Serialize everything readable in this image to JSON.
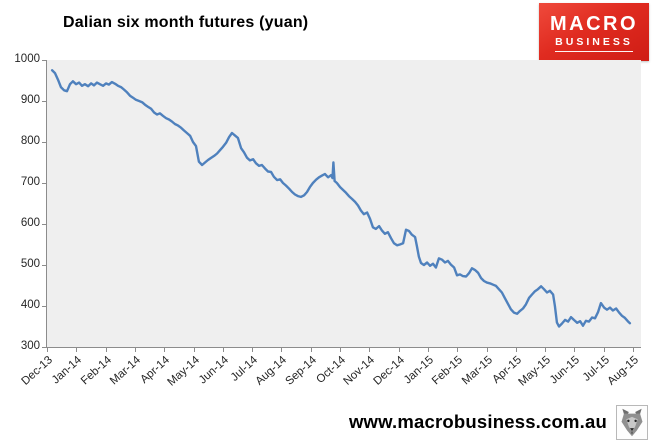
{
  "title": "Dalian six month futures (yuan)",
  "logo": {
    "line1": "MACRO",
    "line2": "BUSINESS",
    "bg_color": "#d92218",
    "text_color": "#ffffff"
  },
  "footer": {
    "url": "www.macrobusiness.com.au",
    "icon": "wolf-icon"
  },
  "chart_data": {
    "type": "line",
    "title": "Dalian six month futures (yuan)",
    "xlabel": "",
    "ylabel": "",
    "ylim": [
      300,
      1000
    ],
    "y_ticks": [
      1000,
      900,
      800,
      700,
      600,
      500,
      400,
      300
    ],
    "x_tick_labels": [
      "Dec-13",
      "Jan-14",
      "Feb-14",
      "Mar-14",
      "Apr-14",
      "May-14",
      "Jun-14",
      "Jul-14",
      "Aug-14",
      "Sep-14",
      "Oct-14",
      "Nov-14",
      "Dec-14",
      "Jan-15",
      "Feb-15",
      "Mar-15",
      "Apr-15",
      "May-15",
      "Jun-15",
      "Jul-15",
      "Aug-15"
    ],
    "grid": false,
    "legend": "none",
    "plot_bg": "#efefef",
    "line_color": "#4F81BD",
    "series": [
      {
        "name": "Dalian six month futures",
        "x_unit": "months since Dec-2013 (0 = Dec-13 tick, 20 = Aug-15 tick)",
        "points": [
          [
            0.14,
            975
          ],
          [
            0.24,
            968
          ],
          [
            0.34,
            952
          ],
          [
            0.44,
            934
          ],
          [
            0.55,
            926
          ],
          [
            0.65,
            924
          ],
          [
            0.75,
            941
          ],
          [
            0.85,
            948
          ],
          [
            0.96,
            941
          ],
          [
            1.06,
            945
          ],
          [
            1.16,
            937
          ],
          [
            1.26,
            941
          ],
          [
            1.37,
            936
          ],
          [
            1.47,
            943
          ],
          [
            1.57,
            938
          ],
          [
            1.67,
            945
          ],
          [
            1.77,
            941
          ],
          [
            1.88,
            937
          ],
          [
            1.98,
            943
          ],
          [
            2.08,
            940
          ],
          [
            2.18,
            946
          ],
          [
            2.29,
            942
          ],
          [
            2.39,
            937
          ],
          [
            2.49,
            934
          ],
          [
            2.59,
            928
          ],
          [
            2.7,
            921
          ],
          [
            2.8,
            913
          ],
          [
            2.9,
            908
          ],
          [
            3.0,
            903
          ],
          [
            3.11,
            900
          ],
          [
            3.21,
            897
          ],
          [
            3.31,
            891
          ],
          [
            3.41,
            886
          ],
          [
            3.52,
            881
          ],
          [
            3.62,
            872
          ],
          [
            3.72,
            867
          ],
          [
            3.82,
            870
          ],
          [
            3.92,
            864
          ],
          [
            4.03,
            858
          ],
          [
            4.13,
            855
          ],
          [
            4.23,
            850
          ],
          [
            4.33,
            844
          ],
          [
            4.44,
            840
          ],
          [
            4.54,
            835
          ],
          [
            4.64,
            828
          ],
          [
            4.74,
            822
          ],
          [
            4.85,
            815
          ],
          [
            4.95,
            800
          ],
          [
            5.05,
            790
          ],
          [
            5.15,
            752
          ],
          [
            5.26,
            744
          ],
          [
            5.36,
            750
          ],
          [
            5.46,
            756
          ],
          [
            5.56,
            761
          ],
          [
            5.67,
            766
          ],
          [
            5.77,
            772
          ],
          [
            5.87,
            780
          ],
          [
            5.97,
            788
          ],
          [
            6.08,
            798
          ],
          [
            6.18,
            812
          ],
          [
            6.28,
            822
          ],
          [
            6.38,
            816
          ],
          [
            6.48,
            810
          ],
          [
            6.59,
            785
          ],
          [
            6.69,
            775
          ],
          [
            6.79,
            762
          ],
          [
            6.89,
            755
          ],
          [
            7.0,
            758
          ],
          [
            7.1,
            748
          ],
          [
            7.2,
            742
          ],
          [
            7.3,
            744
          ],
          [
            7.41,
            735
          ],
          [
            7.51,
            728
          ],
          [
            7.61,
            727
          ],
          [
            7.71,
            715
          ],
          [
            7.82,
            707
          ],
          [
            7.92,
            709
          ],
          [
            8.02,
            700
          ],
          [
            8.12,
            694
          ],
          [
            8.23,
            686
          ],
          [
            8.33,
            678
          ],
          [
            8.43,
            672
          ],
          [
            8.53,
            668
          ],
          [
            8.63,
            666
          ],
          [
            8.74,
            670
          ],
          [
            8.84,
            678
          ],
          [
            8.94,
            690
          ],
          [
            9.04,
            700
          ],
          [
            9.15,
            708
          ],
          [
            9.25,
            714
          ],
          [
            9.35,
            718
          ],
          [
            9.45,
            722
          ],
          [
            9.56,
            714
          ],
          [
            9.66,
            719
          ],
          [
            9.71,
            712
          ],
          [
            9.74,
            750
          ],
          [
            9.78,
            705
          ],
          [
            9.86,
            700
          ],
          [
            9.97,
            690
          ],
          [
            10.07,
            683
          ],
          [
            10.17,
            676
          ],
          [
            10.27,
            668
          ],
          [
            10.38,
            661
          ],
          [
            10.48,
            654
          ],
          [
            10.58,
            645
          ],
          [
            10.68,
            633
          ],
          [
            10.78,
            624
          ],
          [
            10.89,
            628
          ],
          [
            10.99,
            613
          ],
          [
            11.09,
            592
          ],
          [
            11.19,
            588
          ],
          [
            11.3,
            595
          ],
          [
            11.4,
            584
          ],
          [
            11.5,
            576
          ],
          [
            11.6,
            580
          ],
          [
            11.71,
            565
          ],
          [
            11.81,
            553
          ],
          [
            11.91,
            548
          ],
          [
            12.01,
            550
          ],
          [
            12.12,
            553
          ],
          [
            12.22,
            586
          ],
          [
            12.32,
            583
          ],
          [
            12.42,
            574
          ],
          [
            12.53,
            568
          ],
          [
            12.59,
            546
          ],
          [
            12.66,
            520
          ],
          [
            12.73,
            505
          ],
          [
            12.83,
            500
          ],
          [
            12.94,
            506
          ],
          [
            13.04,
            498
          ],
          [
            13.14,
            503
          ],
          [
            13.24,
            494
          ],
          [
            13.34,
            516
          ],
          [
            13.45,
            513
          ],
          [
            13.55,
            506
          ],
          [
            13.65,
            510
          ],
          [
            13.75,
            501
          ],
          [
            13.86,
            494
          ],
          [
            13.96,
            475
          ],
          [
            14.06,
            477
          ],
          [
            14.16,
            473
          ],
          [
            14.27,
            472
          ],
          [
            14.37,
            480
          ],
          [
            14.47,
            492
          ],
          [
            14.57,
            488
          ],
          [
            14.68,
            481
          ],
          [
            14.78,
            468
          ],
          [
            14.88,
            461
          ],
          [
            14.98,
            457
          ],
          [
            15.09,
            455
          ],
          [
            15.19,
            452
          ],
          [
            15.29,
            449
          ],
          [
            15.39,
            441
          ],
          [
            15.49,
            433
          ],
          [
            15.6,
            418
          ],
          [
            15.7,
            405
          ],
          [
            15.8,
            392
          ],
          [
            15.9,
            384
          ],
          [
            16.01,
            381
          ],
          [
            16.11,
            388
          ],
          [
            16.21,
            394
          ],
          [
            16.31,
            404
          ],
          [
            16.42,
            420
          ],
          [
            16.52,
            428
          ],
          [
            16.62,
            436
          ],
          [
            16.72,
            441
          ],
          [
            16.83,
            448
          ],
          [
            16.93,
            441
          ],
          [
            17.03,
            433
          ],
          [
            17.13,
            437
          ],
          [
            17.24,
            428
          ],
          [
            17.3,
            400
          ],
          [
            17.37,
            360
          ],
          [
            17.44,
            350
          ],
          [
            17.54,
            357
          ],
          [
            17.65,
            366
          ],
          [
            17.75,
            362
          ],
          [
            17.85,
            373
          ],
          [
            17.95,
            366
          ],
          [
            18.06,
            359
          ],
          [
            18.16,
            363
          ],
          [
            18.26,
            352
          ],
          [
            18.36,
            364
          ],
          [
            18.46,
            362
          ],
          [
            18.57,
            372
          ],
          [
            18.67,
            370
          ],
          [
            18.77,
            385
          ],
          [
            18.87,
            407
          ],
          [
            18.98,
            396
          ],
          [
            19.08,
            391
          ],
          [
            19.18,
            396
          ],
          [
            19.28,
            389
          ],
          [
            19.39,
            394
          ],
          [
            19.49,
            384
          ],
          [
            19.59,
            376
          ],
          [
            19.69,
            371
          ],
          [
            19.79,
            363
          ],
          [
            19.86,
            358
          ]
        ]
      }
    ]
  }
}
